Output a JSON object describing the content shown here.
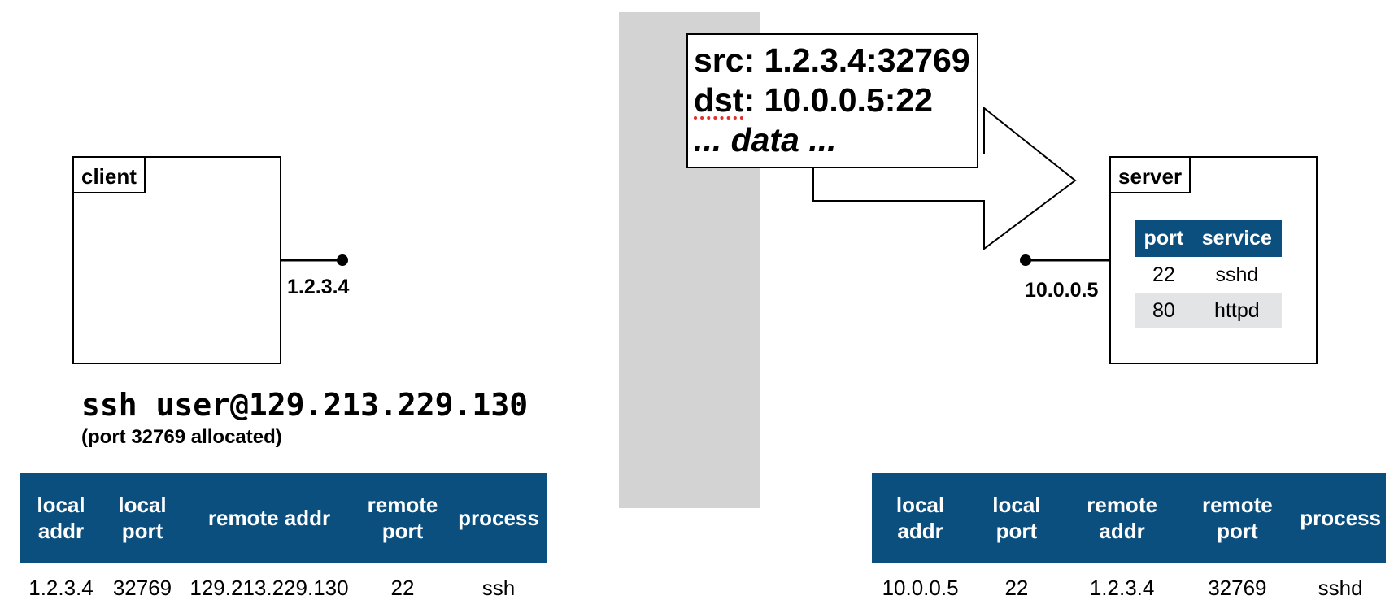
{
  "client": {
    "label": "client",
    "ip": "1.2.3.4",
    "command": "ssh user@129.213.229.130",
    "command_note": "(port 32769 allocated)",
    "table": {
      "headers": [
        {
          "line1": "local",
          "line2": "addr"
        },
        {
          "line1": "local",
          "line2": "port"
        },
        {
          "line1": "remote addr",
          "line2": ""
        },
        {
          "line1": "remote",
          "line2": "port"
        },
        {
          "line1": "process",
          "line2": ""
        }
      ],
      "row": [
        "1.2.3.4",
        "32769",
        "129.213.229.130",
        "22",
        "ssh"
      ]
    }
  },
  "packet": {
    "src_line": "src: 1.2.3.4:32769",
    "dst_key": "dst",
    "dst_rest": ": 10.0.0.5:22",
    "data_line": "... data ..."
  },
  "server": {
    "label": "server",
    "ip": "10.0.0.5",
    "services": {
      "headers": [
        "port",
        "service"
      ],
      "rows": [
        [
          "22",
          "sshd"
        ],
        [
          "80",
          "httpd"
        ]
      ]
    },
    "table": {
      "headers": [
        {
          "line1": "local",
          "line2": "addr"
        },
        {
          "line1": "local",
          "line2": "port"
        },
        {
          "line1": "remote",
          "line2": "addr"
        },
        {
          "line1": "remote",
          "line2": "port"
        },
        {
          "line1": "process",
          "line2": ""
        }
      ],
      "row": [
        "10.0.0.5",
        "22",
        "1.2.3.4",
        "32769",
        "sshd"
      ]
    }
  },
  "colors": {
    "table_header": "#0b4f7f",
    "network_bar": "#d3d3d3",
    "alt_row": "#e3e4e6"
  }
}
